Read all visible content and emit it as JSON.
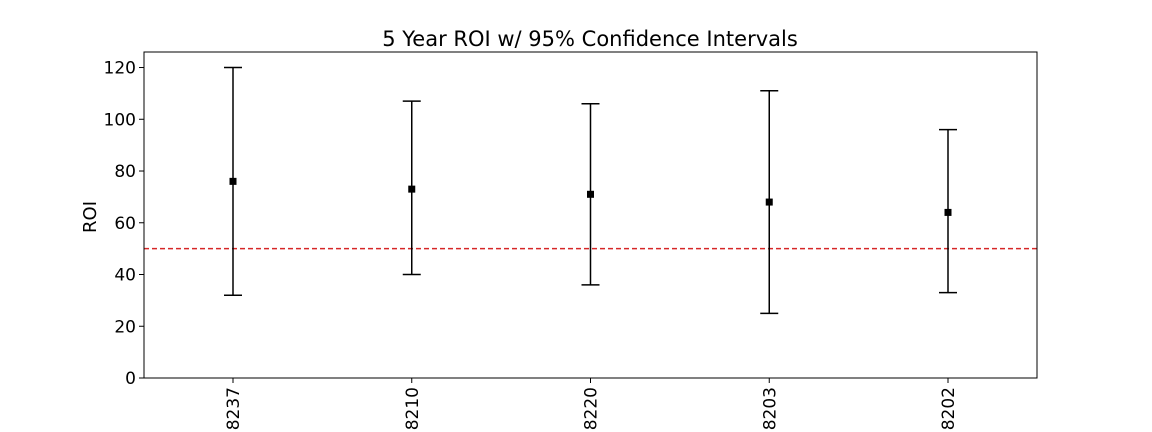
{
  "chart_data": {
    "type": "errorbar",
    "title": "5 Year ROI w/ 95% Confidence Intervals",
    "xlabel": "",
    "ylabel": "ROI",
    "ylim": [
      0,
      126
    ],
    "yticks": [
      0,
      20,
      40,
      60,
      80,
      100,
      120
    ],
    "categories": [
      "8237",
      "8210",
      "8220",
      "8203",
      "8202"
    ],
    "series": [
      {
        "values": [
          76,
          73,
          71,
          68,
          64
        ],
        "lower": [
          32,
          40,
          36,
          25,
          33
        ],
        "upper": [
          120,
          107,
          106,
          111,
          96
        ],
        "marker": "square",
        "color": "#000000"
      }
    ],
    "reference_line": {
      "y": 50,
      "color": "#d62728",
      "style": "dashed"
    },
    "grid": false,
    "legend": "none"
  }
}
